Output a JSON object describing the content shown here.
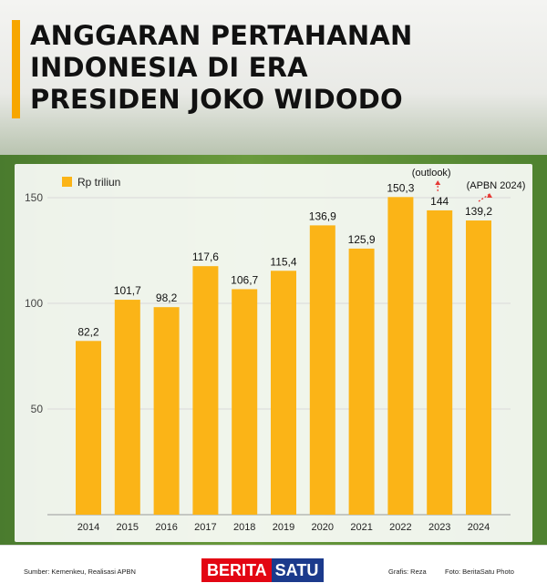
{
  "header": {
    "title_lines": [
      "ANGGARAN PERTAHANAN",
      "INDONESIA DI ERA",
      "PRESIDEN JOKO WIDODO"
    ],
    "accent_color": "#f7a600"
  },
  "chart_data": {
    "type": "bar",
    "categories": [
      "2014",
      "2015",
      "2016",
      "2017",
      "2018",
      "2019",
      "2020",
      "2021",
      "2022",
      "2023",
      "2024"
    ],
    "series": [
      {
        "name": "Rp triliun",
        "values": [
          82.2,
          101.7,
          98.2,
          117.6,
          106.7,
          115.4,
          136.9,
          125.9,
          150.3,
          144,
          139.2
        ],
        "value_labels": [
          "82,2",
          "101,7",
          "98,2",
          "117,6",
          "106,7",
          "115,4",
          "136,9",
          "125,9",
          "150,3",
          "144",
          "139,2"
        ]
      }
    ],
    "bar_color": "#fbb417",
    "yticks": [
      50,
      100,
      150
    ],
    "ylim": [
      0,
      160
    ],
    "grid": true,
    "legend": "top-left",
    "annotations": [
      {
        "category": "2023",
        "text": "(outlook)"
      },
      {
        "category": "2024",
        "text": "(APBN 2024)"
      }
    ],
    "annotation_arrow_color": "#e53935"
  },
  "footer": {
    "source": "Sumber: Kemenkeu, Realisasi APBN",
    "logo_left": "BERITA",
    "logo_right": "SATU",
    "grafis": "Grafis: Reza",
    "foto": "Foto: BeritaSatu Photo"
  }
}
